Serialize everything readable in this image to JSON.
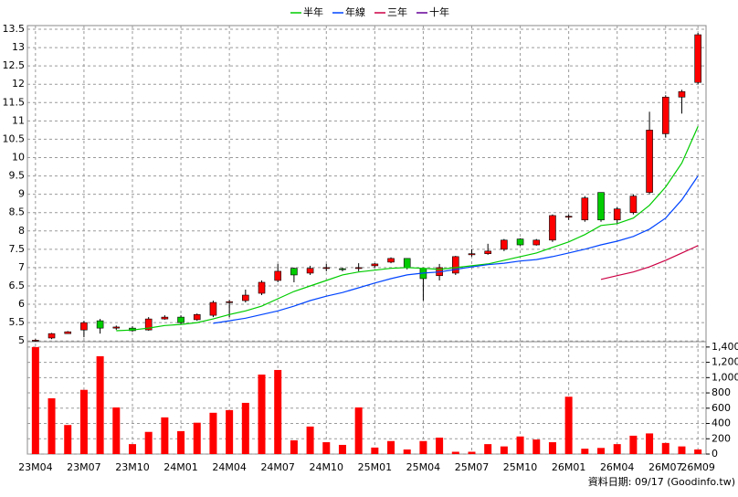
{
  "chart_data": [
    {
      "type": "candlestick",
      "categories": [
        "23M04",
        null,
        null,
        "23M07",
        null,
        null,
        "23M10",
        null,
        null,
        "24M01",
        null,
        null,
        "24M04",
        null,
        null,
        "24M07",
        null,
        null,
        "24M10",
        null,
        null,
        "25M01",
        null,
        null,
        "25M04",
        null,
        null,
        "25M07",
        null,
        null,
        "25M10",
        null,
        null,
        "26M01",
        null,
        null,
        "26M04",
        null,
        null,
        "26M07",
        null,
        "26M09"
      ],
      "open": [
        5.0,
        5.08,
        5.2,
        5.3,
        5.55,
        5.35,
        5.35,
        5.3,
        5.6,
        5.65,
        5.58,
        5.7,
        6.05,
        6.1,
        6.3,
        6.65,
        6.98,
        6.85,
        6.98,
        6.97,
        6.98,
        7.05,
        7.15,
        7.25,
        6.98,
        6.78,
        6.85,
        7.35,
        7.38,
        7.5,
        7.78,
        7.62,
        7.75,
        8.38,
        8.3,
        9.05,
        8.3,
        8.5,
        9.05,
        10.65,
        11.65,
        12.05
      ],
      "high": [
        5.05,
        5.22,
        5.27,
        5.55,
        5.6,
        5.42,
        5.4,
        5.65,
        5.7,
        5.7,
        5.75,
        6.1,
        6.12,
        6.4,
        6.65,
        7.1,
        7.0,
        7.05,
        7.1,
        7.0,
        7.12,
        7.12,
        7.28,
        7.25,
        7.0,
        7.1,
        7.32,
        7.5,
        7.65,
        7.78,
        7.8,
        7.78,
        8.45,
        8.45,
        8.95,
        9.05,
        8.65,
        9.0,
        11.25,
        11.7,
        11.85,
        13.4
      ],
      "low": [
        4.98,
        5.05,
        5.2,
        5.1,
        5.2,
        5.3,
        5.25,
        5.28,
        5.58,
        5.45,
        5.55,
        5.65,
        5.65,
        6.05,
        6.25,
        6.6,
        6.6,
        6.8,
        6.9,
        6.9,
        6.9,
        7.0,
        7.12,
        6.95,
        6.1,
        6.65,
        6.8,
        7.3,
        7.35,
        7.45,
        7.6,
        7.6,
        7.7,
        8.3,
        8.25,
        8.25,
        8.2,
        8.45,
        9.0,
        10.55,
        11.2,
        12.0
      ],
      "close": [
        5.02,
        5.2,
        5.25,
        5.5,
        5.35,
        5.38,
        5.28,
        5.6,
        5.65,
        5.5,
        5.72,
        6.05,
        6.07,
        6.25,
        6.6,
        6.9,
        6.8,
        6.98,
        7.0,
        6.95,
        7.0,
        7.1,
        7.25,
        7.0,
        6.7,
        7.0,
        7.3,
        7.38,
        7.45,
        7.75,
        7.62,
        7.75,
        8.42,
        8.4,
        8.9,
        8.3,
        8.6,
        8.95,
        10.75,
        11.65,
        11.8,
        13.35
      ],
      "up_color": "#ff0000",
      "down_color": "#00cc00",
      "series": [
        {
          "name": "半年",
          "color": "#00cc00",
          "values": [
            null,
            null,
            null,
            null,
            null,
            5.28,
            5.3,
            5.35,
            5.42,
            5.45,
            5.5,
            5.6,
            5.72,
            5.82,
            5.95,
            6.15,
            6.35,
            6.5,
            6.65,
            6.8,
            6.88,
            6.93,
            6.98,
            7.0,
            6.98,
            6.95,
            7.0,
            7.05,
            7.1,
            7.2,
            7.3,
            7.4,
            7.55,
            7.7,
            7.9,
            8.15,
            8.2,
            8.35,
            8.7,
            9.2,
            9.85,
            10.85
          ]
        },
        {
          "name": "年線",
          "color": "#0044ff",
          "values": [
            null,
            null,
            null,
            null,
            null,
            null,
            null,
            null,
            null,
            null,
            null,
            5.48,
            5.55,
            5.62,
            5.72,
            5.82,
            5.95,
            6.1,
            6.22,
            6.32,
            6.45,
            6.58,
            6.7,
            6.8,
            6.85,
            6.88,
            6.95,
            7.02,
            7.08,
            7.12,
            7.18,
            7.22,
            7.3,
            7.4,
            7.5,
            7.62,
            7.72,
            7.85,
            8.05,
            8.35,
            8.85,
            9.5
          ]
        },
        {
          "name": "三年",
          "color": "#cc0044",
          "values": [
            null,
            null,
            null,
            null,
            null,
            null,
            null,
            null,
            null,
            null,
            null,
            null,
            null,
            null,
            null,
            null,
            null,
            null,
            null,
            null,
            null,
            null,
            null,
            null,
            null,
            null,
            null,
            null,
            null,
            null,
            null,
            null,
            null,
            null,
            null,
            6.68,
            6.78,
            6.88,
            7.02,
            7.2,
            7.4,
            7.6
          ]
        },
        {
          "name": "十年",
          "color": "#660099",
          "values": [
            null,
            null,
            null,
            null,
            null,
            null,
            null,
            null,
            null,
            null,
            null,
            null,
            null,
            null,
            null,
            null,
            null,
            null,
            null,
            null,
            null,
            null,
            null,
            null,
            null,
            null,
            null,
            null,
            null,
            null,
            null,
            null,
            null,
            null,
            null,
            null,
            null,
            null,
            null,
            null,
            null,
            null
          ]
        }
      ],
      "ylim": [
        4.98,
        13.6
      ],
      "yticks": [
        5,
        5.5,
        6,
        6.5,
        7,
        7.5,
        8,
        8.5,
        9,
        9.5,
        10,
        10.5,
        11,
        11.5,
        12,
        12.5,
        13,
        13.5
      ],
      "grid": true
    },
    {
      "type": "bar",
      "values": [
        1400,
        730,
        380,
        840,
        1280,
        610,
        130,
        290,
        480,
        300,
        410,
        540,
        575,
        670,
        1040,
        1100,
        180,
        360,
        155,
        120,
        610,
        85,
        170,
        60,
        170,
        215,
        30,
        30,
        130,
        100,
        230,
        190,
        155,
        750,
        70,
        80,
        130,
        240,
        270,
        145,
        100,
        60
      ],
      "color": "#ff0000",
      "ylim": [
        0,
        1470
      ],
      "yticks": [
        0,
        200,
        400,
        600,
        800,
        {
          "value": 1000,
          "label": "1,000"
        },
        {
          "value": 1200,
          "label": "1,200"
        },
        {
          "value": 1400,
          "label": "1,400"
        }
      ],
      "grid": true,
      "footnote": "資料日期: 09/17  (Goodinfo.tw)"
    }
  ]
}
